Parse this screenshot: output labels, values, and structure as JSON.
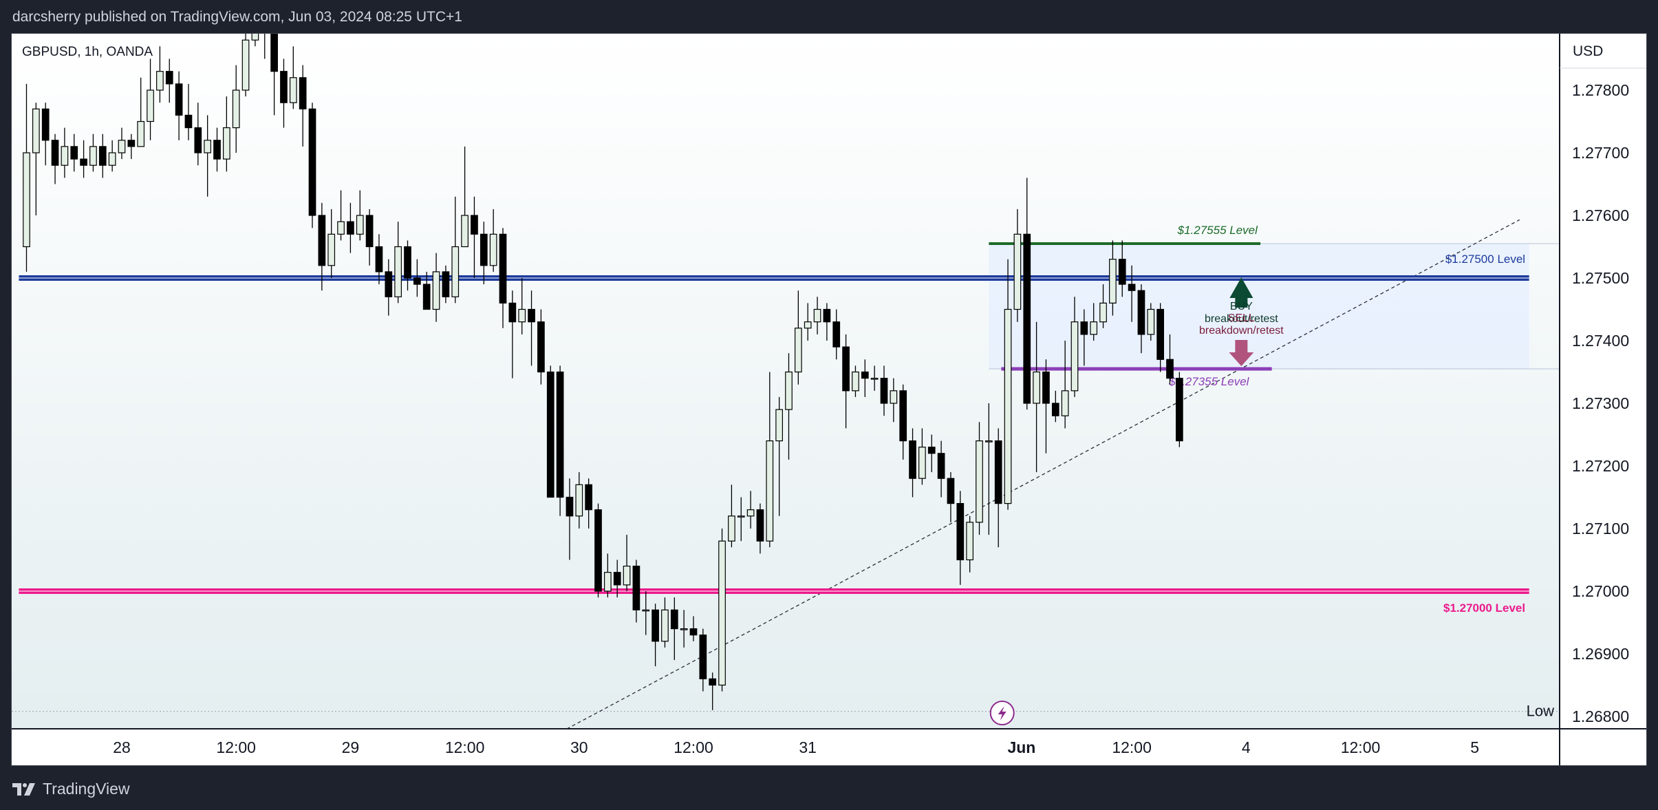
{
  "header": {
    "publish_line": "darcsherry published on TradingView.com, Jun 03, 2024 08:25 UTC+1"
  },
  "footer": {
    "brand": "TradingView",
    "icon": "tradingview-logo-icon"
  },
  "colors": {
    "bull_fill": "#e4f0e6",
    "bear_fill": "#000000",
    "wick": "#000000",
    "level_blue": "#1c3b9c",
    "level_pink": "#ec1a8c",
    "level_green": "#1e6b2b",
    "level_purple": "#8c3fb7",
    "buy_arrow": "#0d4a33",
    "sell_arrow": "#b0537d",
    "zone": "#e6efff",
    "bg_bottom": "#e4eef0"
  },
  "chart_data": {
    "type": "candlestick",
    "symbol_label": "GBPUSD, 1h, OANDA",
    "currency": "USD",
    "y_axis": {
      "min": 1.268,
      "max": 1.2785,
      "ticks": [
        "1.27800",
        "1.27700",
        "1.27600",
        "1.27500",
        "1.27400",
        "1.27300",
        "1.27200",
        "1.27100",
        "1.27000",
        "1.26900",
        "1.26800"
      ]
    },
    "x_axis": {
      "labels": [
        {
          "label": "28",
          "bar": 10
        },
        {
          "label": "12:00",
          "bar": 22
        },
        {
          "label": "29",
          "bar": 34
        },
        {
          "label": "12:00",
          "bar": 46
        },
        {
          "label": "30",
          "bar": 58
        },
        {
          "label": "12:00",
          "bar": 70
        },
        {
          "label": "31",
          "bar": 82
        },
        {
          "label": "Jun",
          "bar": 104
        },
        {
          "label": "12:00",
          "bar": 116
        },
        {
          "label": "4",
          "bar": 128
        },
        {
          "label": "12:00",
          "bar": 140
        },
        {
          "label": "5",
          "bar": 152
        }
      ]
    },
    "low_marker": {
      "label": "Low",
      "value": 1.26808
    },
    "candles": [
      [
        1.2755,
        1.277,
        1.2781,
        1.2751
      ],
      [
        1.277,
        1.2777,
        1.2778,
        1.276
      ],
      [
        1.2777,
        1.2772,
        1.2778,
        1.2768
      ],
      [
        1.2772,
        1.2768,
        1.2773,
        1.2765
      ],
      [
        1.2768,
        1.2771,
        1.2774,
        1.2766
      ],
      [
        1.2771,
        1.2769,
        1.2773,
        1.2767
      ],
      [
        1.2769,
        1.2768,
        1.2772,
        1.2766
      ],
      [
        1.2768,
        1.2771,
        1.2773,
        1.2767
      ],
      [
        1.2771,
        1.2768,
        1.2773,
        1.2766
      ],
      [
        1.2768,
        1.277,
        1.2772,
        1.2767
      ],
      [
        1.277,
        1.2772,
        1.2774,
        1.2769
      ],
      [
        1.2772,
        1.2771,
        1.2773,
        1.2769
      ],
      [
        1.2771,
        1.2775,
        1.2782,
        1.2771
      ],
      [
        1.2775,
        1.278,
        1.2785,
        1.2772
      ],
      [
        1.278,
        1.2783,
        1.2787,
        1.2778
      ],
      [
        1.2783,
        1.2781,
        1.2785,
        1.2778
      ],
      [
        1.2781,
        1.2776,
        1.2783,
        1.2772
      ],
      [
        1.2776,
        1.2774,
        1.2781,
        1.2772
      ],
      [
        1.2774,
        1.277,
        1.2778,
        1.2768
      ],
      [
        1.277,
        1.2772,
        1.2776,
        1.2763
      ],
      [
        1.2772,
        1.2769,
        1.2774,
        1.2767
      ],
      [
        1.2769,
        1.2774,
        1.2779,
        1.2767
      ],
      [
        1.2774,
        1.278,
        1.2784,
        1.277
      ],
      [
        1.278,
        1.2788,
        1.2795,
        1.2779
      ],
      [
        1.2788,
        1.2799,
        1.2803,
        1.2787
      ],
      [
        1.2799,
        1.2795,
        1.2801,
        1.2785
      ],
      [
        1.2795,
        1.2783,
        1.2796,
        1.2776
      ],
      [
        1.2783,
        1.2778,
        1.2785,
        1.2774
      ],
      [
        1.2778,
        1.2782,
        1.2787,
        1.2777
      ],
      [
        1.2782,
        1.2777,
        1.2784,
        1.2771
      ],
      [
        1.2777,
        1.276,
        1.2778,
        1.2758
      ],
      [
        1.276,
        1.2752,
        1.2762,
        1.2748
      ],
      [
        1.2752,
        1.2757,
        1.2761,
        1.275
      ],
      [
        1.2757,
        1.2759,
        1.2764,
        1.2756
      ],
      [
        1.2759,
        1.2757,
        1.2762,
        1.2754
      ],
      [
        1.2757,
        1.276,
        1.2764,
        1.2756
      ],
      [
        1.276,
        1.2755,
        1.2761,
        1.2752
      ],
      [
        1.2755,
        1.2751,
        1.2757,
        1.2749
      ],
      [
        1.2751,
        1.2747,
        1.2753,
        1.2744
      ],
      [
        1.2747,
        1.2755,
        1.2759,
        1.2746
      ],
      [
        1.2755,
        1.275,
        1.2756,
        1.2748
      ],
      [
        1.275,
        1.2749,
        1.2753,
        1.2747
      ],
      [
        1.2749,
        1.2745,
        1.2751,
        1.2745
      ],
      [
        1.2745,
        1.2751,
        1.2754,
        1.2743
      ],
      [
        1.2751,
        1.2747,
        1.2752,
        1.2746
      ],
      [
        1.2747,
        1.2755,
        1.2763,
        1.2746
      ],
      [
        1.2755,
        1.276,
        1.2771,
        1.2755
      ],
      [
        1.276,
        1.2757,
        1.2763,
        1.275
      ],
      [
        1.2757,
        1.2752,
        1.2759,
        1.2749
      ],
      [
        1.2752,
        1.2757,
        1.2761,
        1.2751
      ],
      [
        1.2757,
        1.2746,
        1.2758,
        1.2742
      ],
      [
        1.2746,
        1.2743,
        1.2748,
        1.2734
      ],
      [
        1.2743,
        1.2745,
        1.275,
        1.2741
      ],
      [
        1.2745,
        1.2743,
        1.2748,
        1.2736
      ],
      [
        1.2743,
        1.2735,
        1.2745,
        1.2733
      ],
      [
        1.2735,
        1.2715,
        1.2736,
        1.2715
      ],
      [
        1.2735,
        1.2715,
        1.2736,
        1.2712
      ],
      [
        1.2715,
        1.2712,
        1.2718,
        1.2705
      ],
      [
        1.2712,
        1.2717,
        1.2719,
        1.271
      ],
      [
        1.2717,
        1.2713,
        1.2718,
        1.271
      ],
      [
        1.2713,
        1.27,
        1.2714,
        1.2699
      ],
      [
        1.27,
        1.2703,
        1.2706,
        1.2699
      ],
      [
        1.2703,
        1.2701,
        1.2705,
        1.2699
      ],
      [
        1.2701,
        1.2704,
        1.2709,
        1.27
      ],
      [
        1.2704,
        1.2697,
        1.2705,
        1.2695
      ],
      [
        1.2697,
        1.2697,
        1.27,
        1.2693
      ],
      [
        1.2697,
        1.2692,
        1.2698,
        1.2688
      ],
      [
        1.2692,
        1.2697,
        1.2699,
        1.2691
      ],
      [
        1.2697,
        1.2694,
        1.2699,
        1.2689
      ],
      [
        1.2694,
        1.2694,
        1.2697,
        1.2691
      ],
      [
        1.2694,
        1.2693,
        1.2696,
        1.2692
      ],
      [
        1.2693,
        1.2686,
        1.2694,
        1.2684
      ],
      [
        1.2686,
        1.2685,
        1.2687,
        1.2681
      ],
      [
        1.2685,
        1.2708,
        1.271,
        1.2684
      ],
      [
        1.2708,
        1.2712,
        1.2717,
        1.2707
      ],
      [
        1.2712,
        1.2712,
        1.2715,
        1.2708
      ],
      [
        1.2712,
        1.2713,
        1.2716,
        1.271
      ],
      [
        1.2713,
        1.2708,
        1.2714,
        1.2706
      ],
      [
        1.2708,
        1.2724,
        1.2735,
        1.2707
      ],
      [
        1.2724,
        1.2729,
        1.2731,
        1.2712
      ],
      [
        1.2729,
        1.2735,
        1.2738,
        1.2721
      ],
      [
        1.2735,
        1.2742,
        1.2748,
        1.2733
      ],
      [
        1.2742,
        1.2743,
        1.2746,
        1.274
      ],
      [
        1.2743,
        1.2745,
        1.2747,
        1.2741
      ],
      [
        1.2745,
        1.2743,
        1.2746,
        1.274
      ],
      [
        1.2743,
        1.2739,
        1.2745,
        1.2737
      ],
      [
        1.2739,
        1.2732,
        1.2741,
        1.2726
      ],
      [
        1.2732,
        1.2735,
        1.2736,
        1.2731
      ],
      [
        1.2735,
        1.2734,
        1.2737,
        1.2731
      ],
      [
        1.2734,
        1.2734,
        1.2736,
        1.2732
      ],
      [
        1.2734,
        1.273,
        1.2736,
        1.2728
      ],
      [
        1.273,
        1.2732,
        1.2734,
        1.2727
      ],
      [
        1.2732,
        1.2724,
        1.2733,
        1.2721
      ],
      [
        1.2724,
        1.2718,
        1.2726,
        1.2715
      ],
      [
        1.2718,
        1.2723,
        1.2726,
        1.2717
      ],
      [
        1.2723,
        1.2722,
        1.2725,
        1.2719
      ],
      [
        1.2722,
        1.2718,
        1.2724,
        1.2715
      ],
      [
        1.2718,
        1.2714,
        1.2719,
        1.2711
      ],
      [
        1.2714,
        1.2705,
        1.2716,
        1.2701
      ],
      [
        1.2705,
        1.2711,
        1.2712,
        1.2703
      ],
      [
        1.2711,
        1.2724,
        1.2727,
        1.2709
      ],
      [
        1.2724,
        1.2724,
        1.273,
        1.2709
      ],
      [
        1.2724,
        1.2714,
        1.2726,
        1.2707
      ],
      [
        1.2714,
        1.2745,
        1.2753,
        1.2713
      ],
      [
        1.2745,
        1.2757,
        1.2761,
        1.2743
      ],
      [
        1.2757,
        1.273,
        1.2766,
        1.2729
      ],
      [
        1.273,
        1.2735,
        1.2743,
        1.2719
      ],
      [
        1.2735,
        1.273,
        1.2737,
        1.2722
      ],
      [
        1.273,
        1.2728,
        1.2732,
        1.2727
      ],
      [
        1.2728,
        1.2732,
        1.274,
        1.2726
      ],
      [
        1.2732,
        1.2743,
        1.2747,
        1.2731
      ],
      [
        1.2743,
        1.2741,
        1.2745,
        1.2736
      ],
      [
        1.2741,
        1.2743,
        1.2746,
        1.274
      ],
      [
        1.2743,
        1.2746,
        1.2749,
        1.2742
      ],
      [
        1.2746,
        1.2753,
        1.2756,
        1.2744
      ],
      [
        1.2753,
        1.2749,
        1.2756,
        1.2747
      ],
      [
        1.2749,
        1.2748,
        1.2752,
        1.2743
      ],
      [
        1.2748,
        1.2741,
        1.2749,
        1.2738
      ],
      [
        1.2741,
        1.2745,
        1.2746,
        1.274
      ],
      [
        1.2745,
        1.2737,
        1.2746,
        1.2735
      ],
      [
        1.2737,
        1.2734,
        1.2741,
        1.2733
      ],
      [
        1.2734,
        1.2724,
        1.2735,
        1.2723
      ]
    ],
    "levels": [
      {
        "name": "$1.27500 Level",
        "value": 1.275,
        "color": "#1c3b9c",
        "bar_start": -0.8,
        "bar_end": 157.7,
        "stroke": 8,
        "text_bar": 157.3,
        "text_offset": -22,
        "anchor": "end"
      },
      {
        "name": "$1.27000 Level",
        "value": 1.27,
        "color": "#ec1a8c",
        "bar_start": -0.8,
        "bar_end": 157.7,
        "stroke": 8,
        "text_bar": 157.3,
        "text_offset": 30,
        "anchor": "end"
      },
      {
        "name": "$1.27555 Level",
        "value": 1.27555,
        "color": "#1e6b2b",
        "bar_start": 101.0,
        "bar_end": 129.5,
        "stroke": 4,
        "text_bar": 129.2,
        "text_offset": -14,
        "anchor": "end"
      },
      {
        "name": "$1.27355 Level",
        "value": 1.27355,
        "color": "#8c3fb7",
        "bar_start": 102.3,
        "bar_end": 130.7,
        "stroke": 5,
        "text_bar": 128.3,
        "text_offset": 24,
        "anchor": "end"
      }
    ],
    "zone": {
      "from": 1.27355,
      "to": 1.27555,
      "bar_start": 101.0,
      "bar_end": 157.7
    },
    "trendline": {
      "p1": {
        "bar": 56.7,
        "value": 1.2678
      },
      "p2": {
        "bar": 156.7,
        "value": 1.27593
      }
    },
    "annotations": {
      "buy": {
        "arrow_bar": 127.5,
        "lines": [
          "BUY",
          "breakout/retest"
        ]
      },
      "sell": {
        "arrow_bar": 127.5,
        "lines": [
          "SELL",
          "breakdown/retest"
        ]
      }
    }
  }
}
